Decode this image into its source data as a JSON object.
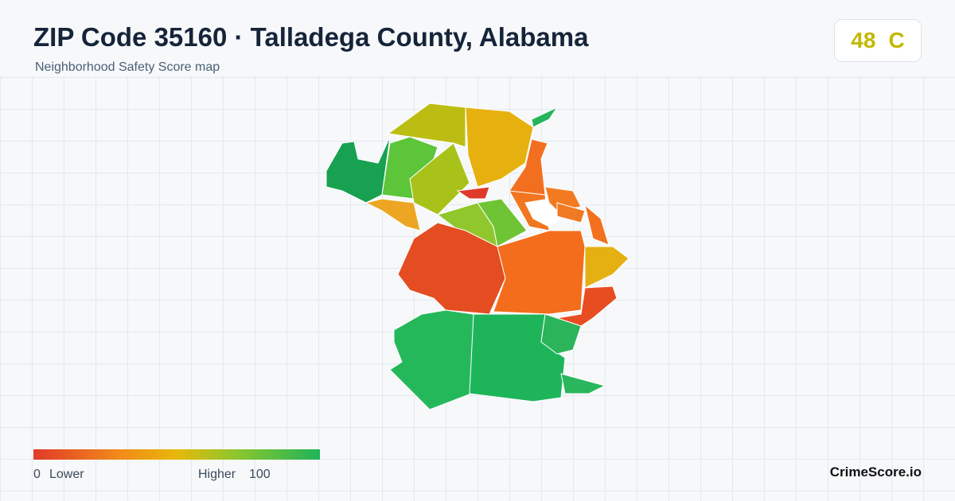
{
  "header": {
    "title": "ZIP Code 35160 · Talladega County, Alabama",
    "subtitle": "Neighborhood Safety Score map"
  },
  "score": {
    "value": "48",
    "grade": "C"
  },
  "legend": {
    "min": "0",
    "min_label": "Lower",
    "max_label": "Higher",
    "max": "100"
  },
  "brand": "CrimeScore.io"
}
